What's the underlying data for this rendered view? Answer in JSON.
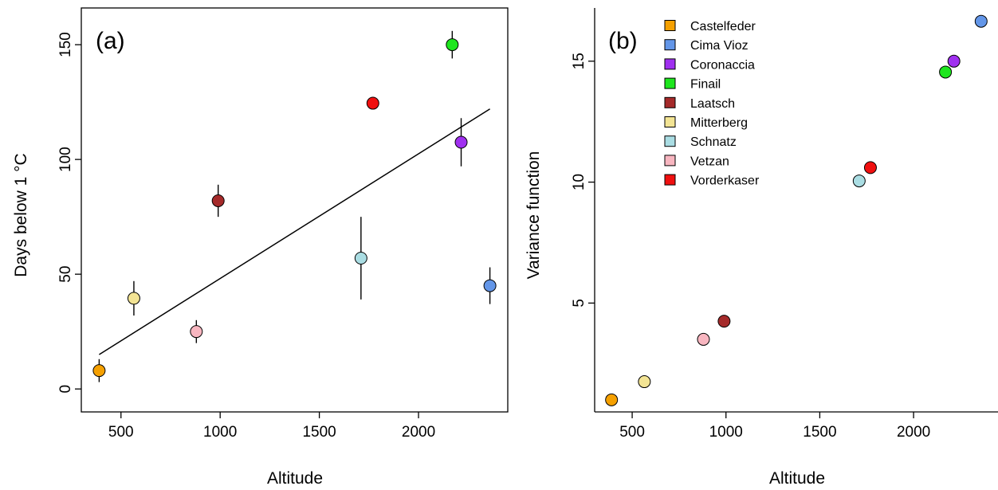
{
  "chart_data": [
    {
      "panel": "(a)",
      "type": "scatter",
      "xlabel": "Altitude",
      "ylabel": "Days below 1 °C",
      "xlim": [
        300,
        2450
      ],
      "ylim": [
        -10,
        166
      ],
      "xticks": [
        500,
        1000,
        1500,
        2000
      ],
      "yticks": [
        0,
        50,
        100,
        150
      ],
      "frame": "box",
      "regression_line": {
        "x": [
          390,
          2360
        ],
        "y": [
          15,
          122
        ]
      },
      "points": [
        {
          "site": "Castelfeder",
          "x": 390,
          "y": 8,
          "err_low": 3,
          "err_high": 13
        },
        {
          "site": "Mitterberg",
          "x": 565,
          "y": 39.5,
          "err_low": 32,
          "err_high": 47
        },
        {
          "site": "Vetzan",
          "x": 880,
          "y": 25,
          "err_low": 20,
          "err_high": 30
        },
        {
          "site": "Laatsch",
          "x": 990,
          "y": 82,
          "err_low": 75,
          "err_high": 89
        },
        {
          "site": "Schnatz",
          "x": 1710,
          "y": 57,
          "err_low": 39,
          "err_high": 75
        },
        {
          "site": "Vorderkaser",
          "x": 1770,
          "y": 124.5,
          "err_low": 123,
          "err_high": 126
        },
        {
          "site": "Finail",
          "x": 2170,
          "y": 150,
          "err_low": 144,
          "err_high": 156
        },
        {
          "site": "Coronaccia",
          "x": 2215,
          "y": 107.5,
          "err_low": 97,
          "err_high": 118
        },
        {
          "site": "Cima Vioz",
          "x": 2360,
          "y": 45,
          "err_low": 37,
          "err_high": 53
        }
      ]
    },
    {
      "panel": "(b)",
      "type": "scatter",
      "xlabel": "Altitude",
      "ylabel": "Variance function",
      "xlim": [
        300,
        2450
      ],
      "ylim": [
        0.5,
        17.2
      ],
      "xticks": [
        500,
        1000,
        1500,
        2000
      ],
      "yticks": [
        5,
        10,
        15
      ],
      "frame": "L",
      "legend_position": "top-left",
      "points": [
        {
          "site": "Castelfeder",
          "x": 390,
          "y": 1.0
        },
        {
          "site": "Mitterberg",
          "x": 565,
          "y": 1.75
        },
        {
          "site": "Vetzan",
          "x": 880,
          "y": 3.5
        },
        {
          "site": "Laatsch",
          "x": 990,
          "y": 4.25
        },
        {
          "site": "Schnatz",
          "x": 1710,
          "y": 10.05
        },
        {
          "site": "Vorderkaser",
          "x": 1770,
          "y": 10.6
        },
        {
          "site": "Finail",
          "x": 2170,
          "y": 14.55
        },
        {
          "site": "Coronaccia",
          "x": 2215,
          "y": 15.0
        },
        {
          "site": "Cima Vioz",
          "x": 2360,
          "y": 16.65
        }
      ]
    }
  ],
  "legend": [
    {
      "site": "Castelfeder",
      "color": "#f5a000"
    },
    {
      "site": "Cima Vioz",
      "color": "#6396e8"
    },
    {
      "site": "Coronaccia",
      "color": "#a030f0"
    },
    {
      "site": "Finail",
      "color": "#1ee61e"
    },
    {
      "site": "Laatsch",
      "color": "#a52a2a"
    },
    {
      "site": "Mitterberg",
      "color": "#f3e494"
    },
    {
      "site": "Schnatz",
      "color": "#aadde3"
    },
    {
      "site": "Vetzan",
      "color": "#f8b6c0"
    },
    {
      "site": "Vorderkaser",
      "color": "#f01010"
    }
  ]
}
